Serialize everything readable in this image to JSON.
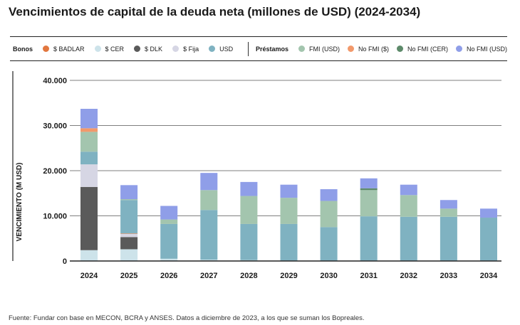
{
  "title": "Vencimientos de capital de la deuda neta (millones de USD) (2024-2034)",
  "legend": {
    "bonos_label": "Bonos",
    "prestamos_label": "Préstamos"
  },
  "source": "Fuente: Fundar con base en MECON, BCRA y ANSES. Datos a diciembre de 2023, a los que se suman los Bopreales.",
  "chart_data": {
    "type": "bar",
    "stacked": true,
    "ylabel": "VENCIMIENTO (M USD)",
    "xlabel": "",
    "ylim": [
      0,
      40000
    ],
    "yticks": [
      0,
      10000,
      20000,
      30000,
      40000
    ],
    "ytick_labels": [
      "0",
      "10.000",
      "20.000",
      "30.000",
      "40.000"
    ],
    "grid": true,
    "legend_position": "top",
    "categories": [
      "2024",
      "2025",
      "2026",
      "2027",
      "2028",
      "2029",
      "2030",
      "2031",
      "2032",
      "2033",
      "2034"
    ],
    "series": [
      {
        "name": "$ CER",
        "group": "Bonos",
        "color": "#cde3ea",
        "values": [
          2400,
          2600,
          500,
          300,
          200,
          100,
          100,
          100,
          100,
          100,
          100
        ]
      },
      {
        "name": "$ DLK",
        "group": "Bonos",
        "color": "#5a5a5a",
        "values": [
          14000,
          2700,
          0,
          0,
          0,
          0,
          0,
          0,
          0,
          0,
          0
        ]
      },
      {
        "name": "$ Fija",
        "group": "Bonos",
        "color": "#d6d6e4",
        "values": [
          5000,
          700,
          0,
          0,
          0,
          0,
          0,
          0,
          0,
          0,
          0
        ]
      },
      {
        "name": "$ BADLAR",
        "group": "Bonos",
        "color": "#e2773f",
        "values": [
          0,
          100,
          0,
          0,
          0,
          0,
          0,
          0,
          0,
          0,
          0
        ]
      },
      {
        "name": "USD",
        "group": "Bonos",
        "color": "#7fb2c1",
        "values": [
          2800,
          7400,
          7700,
          11000,
          8000,
          8100,
          7400,
          9800,
          9700,
          9700,
          9500
        ]
      },
      {
        "name": "FMI (USD)",
        "group": "Préstamos",
        "color": "#a3c5ae",
        "values": [
          4400,
          200,
          1000,
          4400,
          6200,
          5800,
          5800,
          5800,
          4800,
          1800,
          0
        ]
      },
      {
        "name": "No FMI (CER)",
        "group": "Préstamos",
        "color": "#5d8a6a",
        "values": [
          0,
          0,
          0,
          0,
          0,
          0,
          0,
          400,
          0,
          0,
          0
        ]
      },
      {
        "name": "No FMI ($)",
        "group": "Préstamos",
        "color": "#f2996b",
        "values": [
          800,
          0,
          0,
          0,
          0,
          0,
          0,
          0,
          0,
          0,
          0
        ]
      },
      {
        "name": "No FMI (USD)",
        "group": "Préstamos",
        "color": "#8f9ee8",
        "values": [
          4300,
          3100,
          3000,
          3800,
          3100,
          2900,
          2600,
          2200,
          2300,
          1900,
          2000
        ]
      }
    ],
    "legend_bonos": [
      {
        "name": "$ BADLAR",
        "color": "#e2773f"
      },
      {
        "name": "$ CER",
        "color": "#cde3ea"
      },
      {
        "name": "$ DLK",
        "color": "#5a5a5a"
      },
      {
        "name": "$ Fija",
        "color": "#d6d6e4"
      },
      {
        "name": "USD",
        "color": "#7fb2c1"
      }
    ],
    "legend_prestamos": [
      {
        "name": "FMI (USD)",
        "color": "#a3c5ae"
      },
      {
        "name": "No FMI ($)",
        "color": "#f2996b"
      },
      {
        "name": "No FMI (CER)",
        "color": "#5d8a6a"
      },
      {
        "name": "No FMI (USD)",
        "color": "#8f9ee8"
      }
    ]
  }
}
